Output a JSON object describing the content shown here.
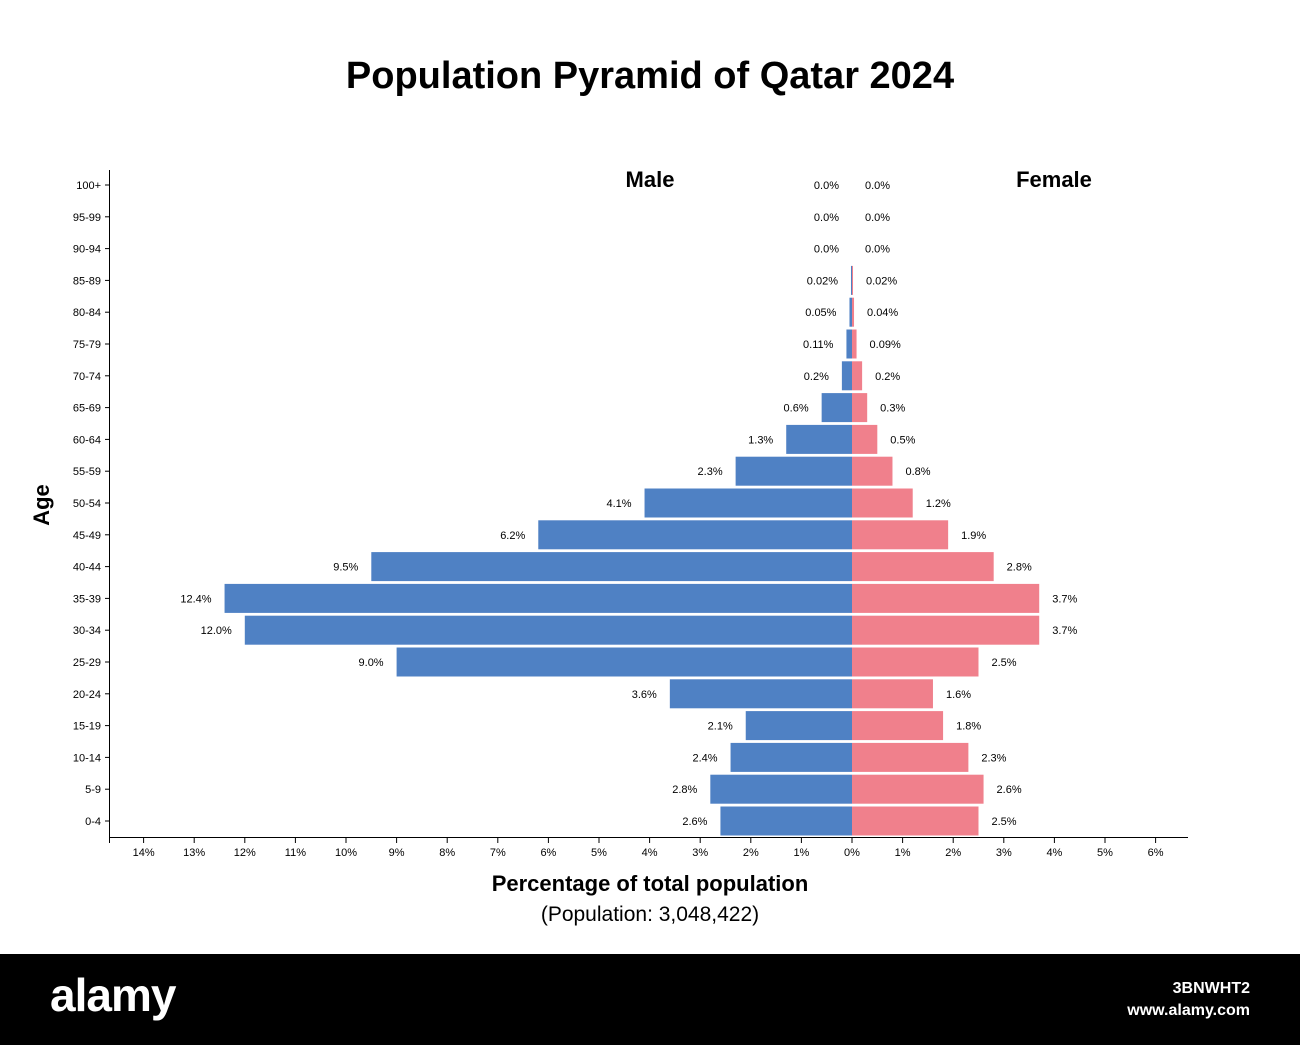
{
  "chart_data": {
    "type": "bar",
    "orientation": "horizontal-diverging",
    "title": "Population Pyramid of Qatar 2024",
    "xlabel": "Percentage of total population",
    "population_note": "(Population: 3,048,422)",
    "ylabel": "Age",
    "categories": [
      "100+",
      "95-99",
      "90-94",
      "85-89",
      "80-84",
      "75-79",
      "70-74",
      "65-69",
      "60-64",
      "55-59",
      "50-54",
      "45-49",
      "40-44",
      "35-39",
      "30-34",
      "25-29",
      "20-24",
      "15-19",
      "10-14",
      "5-9",
      "0-4"
    ],
    "series": [
      {
        "name": "Male",
        "color": "#4F81C4",
        "values": [
          0.0,
          0.0,
          0.0,
          0.02,
          0.05,
          0.11,
          0.2,
          0.6,
          1.3,
          2.3,
          4.1,
          6.2,
          9.5,
          12.4,
          12.0,
          9.0,
          3.6,
          2.1,
          2.4,
          2.8,
          2.6
        ],
        "labels": [
          "0.0%",
          "0.0%",
          "0.0%",
          "0.02%",
          "0.05%",
          "0.11%",
          "0.2%",
          "0.6%",
          "1.3%",
          "2.3%",
          "4.1%",
          "6.2%",
          "9.5%",
          "12.4%",
          "12.0%",
          "9.0%",
          "3.6%",
          "2.1%",
          "2.4%",
          "2.8%",
          "2.6%"
        ]
      },
      {
        "name": "Female",
        "color": "#F0808C",
        "values": [
          0.0,
          0.0,
          0.0,
          0.02,
          0.04,
          0.09,
          0.2,
          0.3,
          0.5,
          0.8,
          1.2,
          1.9,
          2.8,
          3.7,
          3.7,
          2.5,
          1.6,
          1.8,
          2.3,
          2.6,
          2.5
        ],
        "labels": [
          "0.0%",
          "0.0%",
          "0.0%",
          "0.02%",
          "0.04%",
          "0.09%",
          "0.2%",
          "0.3%",
          "0.5%",
          "0.8%",
          "1.2%",
          "1.9%",
          "2.8%",
          "3.7%",
          "3.7%",
          "2.5%",
          "1.6%",
          "1.8%",
          "2.3%",
          "2.6%",
          "2.5%"
        ]
      }
    ],
    "xlim": [
      -14,
      6
    ],
    "x_ticks": [
      -14,
      -13,
      -12,
      -11,
      -10,
      -9,
      -8,
      -7,
      -6,
      -5,
      -4,
      -3,
      -2,
      -1,
      0,
      1,
      2,
      3,
      4,
      5,
      6
    ],
    "x_tick_labels": [
      "14%",
      "13%",
      "12%",
      "11%",
      "10%",
      "9%",
      "8%",
      "7%",
      "6%",
      "5%",
      "4%",
      "3%",
      "2%",
      "1%",
      "0%",
      "1%",
      "2%",
      "3%",
      "4%",
      "5%",
      "6%"
    ],
    "grid": false,
    "legend": "side labels at top (Male left, Female right)"
  },
  "footer": {
    "logo": "alamy",
    "image_code": "3BNWHT2",
    "url": "www.alamy.com"
  }
}
